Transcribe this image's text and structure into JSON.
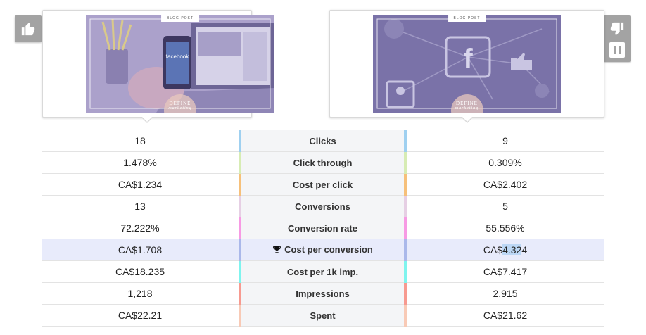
{
  "ad_left": {
    "image_tag": "BLOG POST",
    "phone_brand": "facebook",
    "seal_text": "DEFINE",
    "seal_sub": "marketing"
  },
  "ad_right": {
    "image_tag": "BLOG POST",
    "seal_text": "DEFINE",
    "seal_sub": "marketing"
  },
  "icons": {
    "like": "thumbs-up-icon",
    "dislike": "thumbs-down-icon",
    "pause": "pause-icon",
    "trophy": "trophy-icon"
  },
  "colors": {
    "image_tint": "#7a72a8",
    "highlight_row": "#e8ebfb"
  },
  "metrics": [
    {
      "label": "Clicks",
      "left": "18",
      "right": "9",
      "accent": "#9fd0f0"
    },
    {
      "label": "Click through",
      "left": "1.478%",
      "right": "0.309%",
      "accent": "#d7ecb4"
    },
    {
      "label": "Cost per click",
      "left": "CA$1.234",
      "right": "CA$2.402",
      "accent": "#f6c07a"
    },
    {
      "label": "Conversions",
      "left": "13",
      "right": "5",
      "accent": "#e6cfe4"
    },
    {
      "label": "Conversion rate",
      "left": "72.222%",
      "right": "55.556%",
      "accent": "#f79ae4"
    },
    {
      "label": "Cost per conversion",
      "left": "CA$1.708",
      "right_prefix": "CA$",
      "right_selected": "4.32",
      "right_suffix": "4",
      "accent": "#aab8ea",
      "winner": true
    },
    {
      "label": "Cost per 1k imp.",
      "left": "CA$18.235",
      "right": "CA$7.417",
      "accent": "#7ff4ee"
    },
    {
      "label": "Impressions",
      "left": "1,218",
      "right": "2,915",
      "accent": "#f79a90"
    },
    {
      "label": "Spent",
      "left": "CA$22.21",
      "right": "CA$21.62",
      "accent": "#f8cab6"
    }
  ]
}
